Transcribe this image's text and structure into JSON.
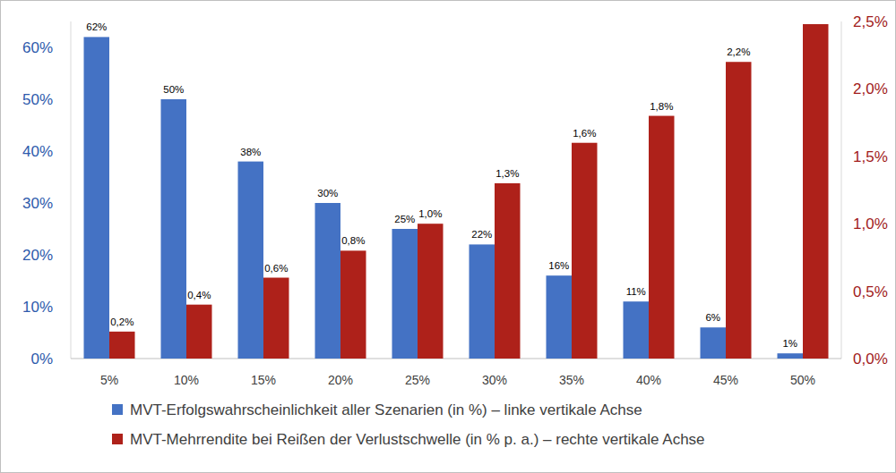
{
  "chart_data": {
    "type": "bar",
    "categories": [
      "5%",
      "10%",
      "15%",
      "20%",
      "25%",
      "30%",
      "35%",
      "40%",
      "45%",
      "50%"
    ],
    "series": [
      {
        "name": "MVT-Erfolgswahrscheinlichkeit aller Szenarien (in %) – linke vertikale Achse",
        "color": "#4472C4",
        "values": [
          62,
          50,
          38,
          30,
          25,
          22,
          16,
          11,
          6,
          1
        ],
        "value_labels": [
          "62%",
          "50%",
          "38%",
          "30%",
          "25%",
          "22%",
          "16%",
          "11%",
          "6%",
          "1%"
        ]
      },
      {
        "name": "MVT-Mehrrendite bei Reißen der Verlustschwelle (in % p. a.) – rechte vertikale Achse",
        "color": "#AE211A",
        "axis": "y2",
        "values": [
          0.2,
          0.4,
          0.6,
          0.8,
          1.0,
          1.3,
          1.6,
          1.8,
          2.2,
          2.48
        ],
        "value_labels": [
          "0,2%",
          "0,4%",
          "0,6%",
          "0,8%",
          "1,0%",
          "1,3%",
          "1,6%",
          "1,8%",
          "2,2%",
          null
        ]
      }
    ],
    "ylim": [
      0,
      65
    ],
    "yticks": [
      {
        "value": 0,
        "label": "0%"
      },
      {
        "value": 10,
        "label": "10%"
      },
      {
        "value": 20,
        "label": "20%"
      },
      {
        "value": 30,
        "label": "30%"
      },
      {
        "value": 40,
        "label": "40%"
      },
      {
        "value": 50,
        "label": "50%"
      },
      {
        "value": 60,
        "label": "60%"
      }
    ],
    "y2lim": [
      0,
      2.5
    ],
    "y2ticks": [
      {
        "value": 0,
        "label": "0,0%"
      },
      {
        "value": 0.5,
        "label": "0,5%"
      },
      {
        "value": 1,
        "label": "1,0%"
      },
      {
        "value": 1.5,
        "label": "1,5%"
      },
      {
        "value": 2,
        "label": "2,0%"
      },
      {
        "value": 2.5,
        "label": "2,5%"
      }
    ],
    "grid": false,
    "legend": "bottom",
    "data_labels": true
  }
}
